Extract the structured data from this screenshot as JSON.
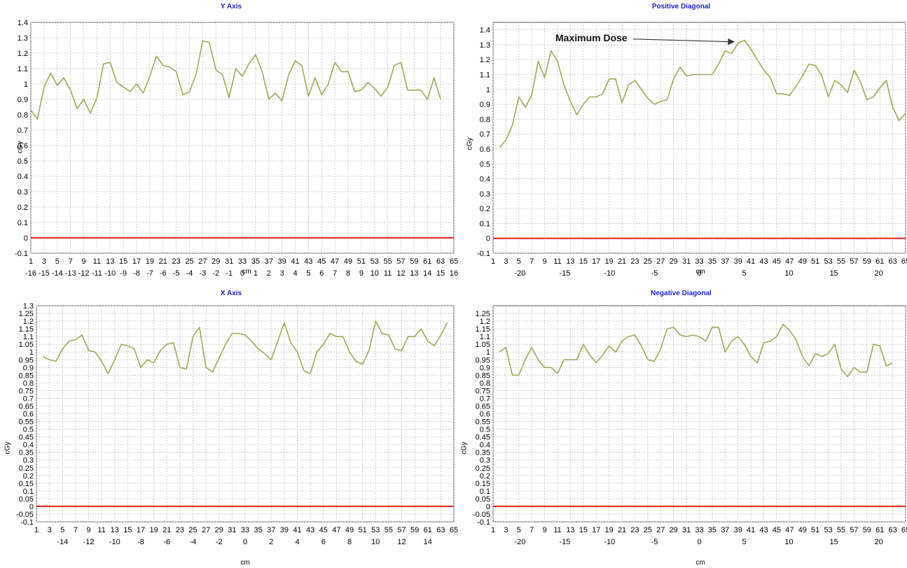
{
  "chart_data": [
    {
      "type": "line",
      "title": "Y Axis",
      "xlabel": "cm",
      "ylabel": "cGy",
      "ylim": [
        -0.1,
        1.4
      ],
      "yticks": [
        "-0.1",
        "0",
        "0.1",
        "0.2",
        "0.3",
        "0.4",
        "0.5",
        "0.6",
        "0.7",
        "0.8",
        "0.9",
        "1",
        "1.1",
        "1.2",
        "1.3",
        "1.4"
      ],
      "index_ticks": [
        "1",
        "3",
        "5",
        "7",
        "9",
        "11",
        "13",
        "15",
        "17",
        "19",
        "21",
        "23",
        "25",
        "27",
        "29",
        "31",
        "33",
        "35",
        "37",
        "39",
        "41",
        "43",
        "45",
        "47",
        "49",
        "51",
        "53",
        "55",
        "57",
        "59",
        "61",
        "63",
        "65"
      ],
      "cm_ticks": [
        "-16",
        "-15",
        "-14",
        "-13",
        "-12",
        "-11",
        "-10",
        "-9",
        "-8",
        "-7",
        "-6",
        "-5",
        "-4",
        "-3",
        "-2",
        "-1",
        "0",
        "1",
        "2",
        "3",
        "4",
        "5",
        "6",
        "7",
        "8",
        "9",
        "10",
        "11",
        "12",
        "13",
        "14",
        "15",
        "16"
      ],
      "grid": true,
      "series": [
        {
          "color": "#a6a65a",
          "x_start": 1,
          "values": [
            0.83,
            0.77,
            0.98,
            1.07,
            0.99,
            1.04,
            0.96,
            0.84,
            0.9,
            0.81,
            0.91,
            1.13,
            1.14,
            1.01,
            0.98,
            0.95,
            1.0,
            0.94,
            1.05,
            1.18,
            1.12,
            1.11,
            1.08,
            0.93,
            0.95,
            1.06,
            1.28,
            1.27,
            1.09,
            1.06,
            0.91,
            1.1,
            1.05,
            1.13,
            1.19,
            1.08,
            0.9,
            0.94,
            0.89,
            1.06,
            1.15,
            1.12,
            0.92,
            1.04,
            0.93,
            1.0,
            1.14,
            1.08,
            1.08,
            0.95,
            0.96,
            1.01,
            0.97,
            0.92,
            0.98,
            1.12,
            1.14,
            0.96,
            0.96,
            0.96,
            0.9,
            1.04,
            0.9
          ]
        },
        {
          "color": "#e8201c",
          "x_start": 1,
          "constant": 0.0
        }
      ]
    },
    {
      "type": "line",
      "title": "Positive Diagonal",
      "xlabel": "cm",
      "ylabel": "cGy",
      "ylim": [
        -0.1,
        1.45
      ],
      "yticks": [
        "-0.1",
        "0",
        "0.1",
        "0.2",
        "0.3",
        "0.4",
        "0.5",
        "0.6",
        "0.7",
        "0.8",
        "0.9",
        "1",
        "1.1",
        "1.2",
        "1.3",
        "1.4"
      ],
      "index_ticks": [
        "1",
        "3",
        "5",
        "7",
        "9",
        "11",
        "13",
        "15",
        "17",
        "19",
        "21",
        "23",
        "25",
        "27",
        "29",
        "31",
        "33",
        "35",
        "37",
        "39",
        "41",
        "43",
        "45",
        "47",
        "49",
        "51",
        "53",
        "55",
        "57",
        "59",
        "61",
        "63",
        "65"
      ],
      "cm_ticks": [
        "-20",
        "-15",
        "-10",
        "-5",
        "0",
        "5",
        "10",
        "15",
        "20"
      ],
      "cm_range": [
        -23,
        23
      ],
      "annotation": {
        "text": "Maximum Dose",
        "point_index": 39
      },
      "grid": true,
      "series": [
        {
          "color": "#a6a65a",
          "x_start": 2,
          "values": [
            0.61,
            0.66,
            0.76,
            0.95,
            0.88,
            0.96,
            1.19,
            1.08,
            1.26,
            1.19,
            1.03,
            0.92,
            0.83,
            0.9,
            0.95,
            0.95,
            0.97,
            1.07,
            1.07,
            0.91,
            1.03,
            1.06,
            1.0,
            0.94,
            0.9,
            0.92,
            0.93,
            1.07,
            1.15,
            1.09,
            1.1,
            1.1,
            1.1,
            1.1,
            1.17,
            1.26,
            1.24,
            1.31,
            1.33,
            1.27,
            1.2,
            1.13,
            1.08,
            0.97,
            0.97,
            0.96,
            1.02,
            1.09,
            1.17,
            1.16,
            1.09,
            0.95,
            1.06,
            1.03,
            0.98,
            1.13,
            1.05,
            0.93,
            0.95,
            1.01,
            1.06,
            0.88,
            0.79,
            0.84
          ]
        },
        {
          "color": "#e8201c",
          "x_start": 1,
          "constant": 0.0
        }
      ]
    },
    {
      "type": "line",
      "title": "X Axis",
      "xlabel": "cm",
      "ylabel": "cGy",
      "ylim": [
        -0.1,
        1.3
      ],
      "yticks": [
        "-0.1",
        "-0.05",
        "0",
        "0.05",
        "0.1",
        "0.15",
        "0.2",
        "0.25",
        "0.3",
        "0.35",
        "0.4",
        "0.45",
        "0.5",
        "0.55",
        "0.6",
        "0.65",
        "0.7",
        "0.75",
        "0.8",
        "0.85",
        "0.9",
        "0.95",
        "1",
        "1.05",
        "1.1",
        "1.15",
        "1.2",
        "1.25",
        "1.3"
      ],
      "index_ticks": [
        "1",
        "3",
        "5",
        "7",
        "9",
        "11",
        "13",
        "15",
        "17",
        "19",
        "21",
        "23",
        "25",
        "27",
        "29",
        "31",
        "33",
        "35",
        "37",
        "39",
        "41",
        "43",
        "45",
        "47",
        "49",
        "51",
        "53",
        "55",
        "57",
        "59",
        "61",
        "63",
        "65"
      ],
      "cm_ticks": [
        "-14",
        "-12",
        "-10",
        "-8",
        "-6",
        "-4",
        "-2",
        "0",
        "2",
        "4",
        "6",
        "8",
        "10",
        "12",
        "14"
      ],
      "cm_range": [
        -16,
        16
      ],
      "grid": true,
      "series": [
        {
          "color": "#a6a65a",
          "x_start": 2,
          "values": [
            0.97,
            0.95,
            0.94,
            1.02,
            1.07,
            1.08,
            1.11,
            1.01,
            1.0,
            0.94,
            0.86,
            0.95,
            1.05,
            1.04,
            1.02,
            0.9,
            0.95,
            0.93,
            1.01,
            1.05,
            1.06,
            0.9,
            0.89,
            1.1,
            1.16,
            0.9,
            0.87,
            0.96,
            1.05,
            1.12,
            1.12,
            1.11,
            1.07,
            1.02,
            0.99,
            0.95,
            1.07,
            1.19,
            1.06,
            1.0,
            0.88,
            0.86,
            1.0,
            1.05,
            1.12,
            1.1,
            1.1,
            1.0,
            0.94,
            0.92,
            1.01,
            1.2,
            1.12,
            1.11,
            1.02,
            1.01,
            1.1,
            1.1,
            1.15,
            1.07,
            1.04,
            1.11,
            1.19
          ]
        },
        {
          "color": "#e8201c",
          "x_start": 1,
          "constant": 0.0
        }
      ]
    },
    {
      "type": "line",
      "title": "Negative Diagonal",
      "xlabel": "cm",
      "ylabel": "cGy",
      "ylim": [
        -0.1,
        1.3
      ],
      "yticks": [
        "-0.1",
        "-0.05",
        "0",
        "0.05",
        "0.1",
        "0.15",
        "0.2",
        "0.25",
        "0.3",
        "0.35",
        "0.4",
        "0.45",
        "0.5",
        "0.55",
        "0.6",
        "0.65",
        "0.7",
        "0.75",
        "0.8",
        "0.85",
        "0.9",
        "0.95",
        "1",
        "1.05",
        "1.1",
        "1.15",
        "1.2",
        "1.25"
      ],
      "index_ticks": [
        "1",
        "3",
        "5",
        "7",
        "9",
        "11",
        "13",
        "15",
        "17",
        "19",
        "21",
        "23",
        "25",
        "27",
        "29",
        "31",
        "33",
        "35",
        "37",
        "39",
        "41",
        "43",
        "45",
        "47",
        "49",
        "51",
        "53",
        "55",
        "57",
        "59",
        "61",
        "63",
        "65"
      ],
      "cm_ticks": [
        "-20",
        "-15",
        "-10",
        "-5",
        "0",
        "5",
        "10",
        "15",
        "20"
      ],
      "cm_range": [
        -23,
        23
      ],
      "grid": true,
      "series": [
        {
          "color": "#a6a65a",
          "x_start": 2,
          "values": [
            1.0,
            1.03,
            0.85,
            0.85,
            0.95,
            1.03,
            0.95,
            0.9,
            0.9,
            0.86,
            0.95,
            0.95,
            0.95,
            1.05,
            0.98,
            0.93,
            0.98,
            1.04,
            1.0,
            1.07,
            1.1,
            1.11,
            1.04,
            0.95,
            0.94,
            1.02,
            1.15,
            1.16,
            1.11,
            1.1,
            1.11,
            1.1,
            1.07,
            1.16,
            1.16,
            1.0,
            1.07,
            1.1,
            1.05,
            0.97,
            0.93,
            1.06,
            1.07,
            1.1,
            1.18,
            1.14,
            1.08,
            0.97,
            0.91,
            0.99,
            0.97,
            0.99,
            1.05,
            0.89,
            0.84,
            0.9,
            0.87,
            0.87,
            1.05,
            1.04,
            0.91,
            0.93
          ]
        },
        {
          "color": "#e8201c",
          "x_start": 1,
          "constant": 0.0
        }
      ]
    }
  ]
}
